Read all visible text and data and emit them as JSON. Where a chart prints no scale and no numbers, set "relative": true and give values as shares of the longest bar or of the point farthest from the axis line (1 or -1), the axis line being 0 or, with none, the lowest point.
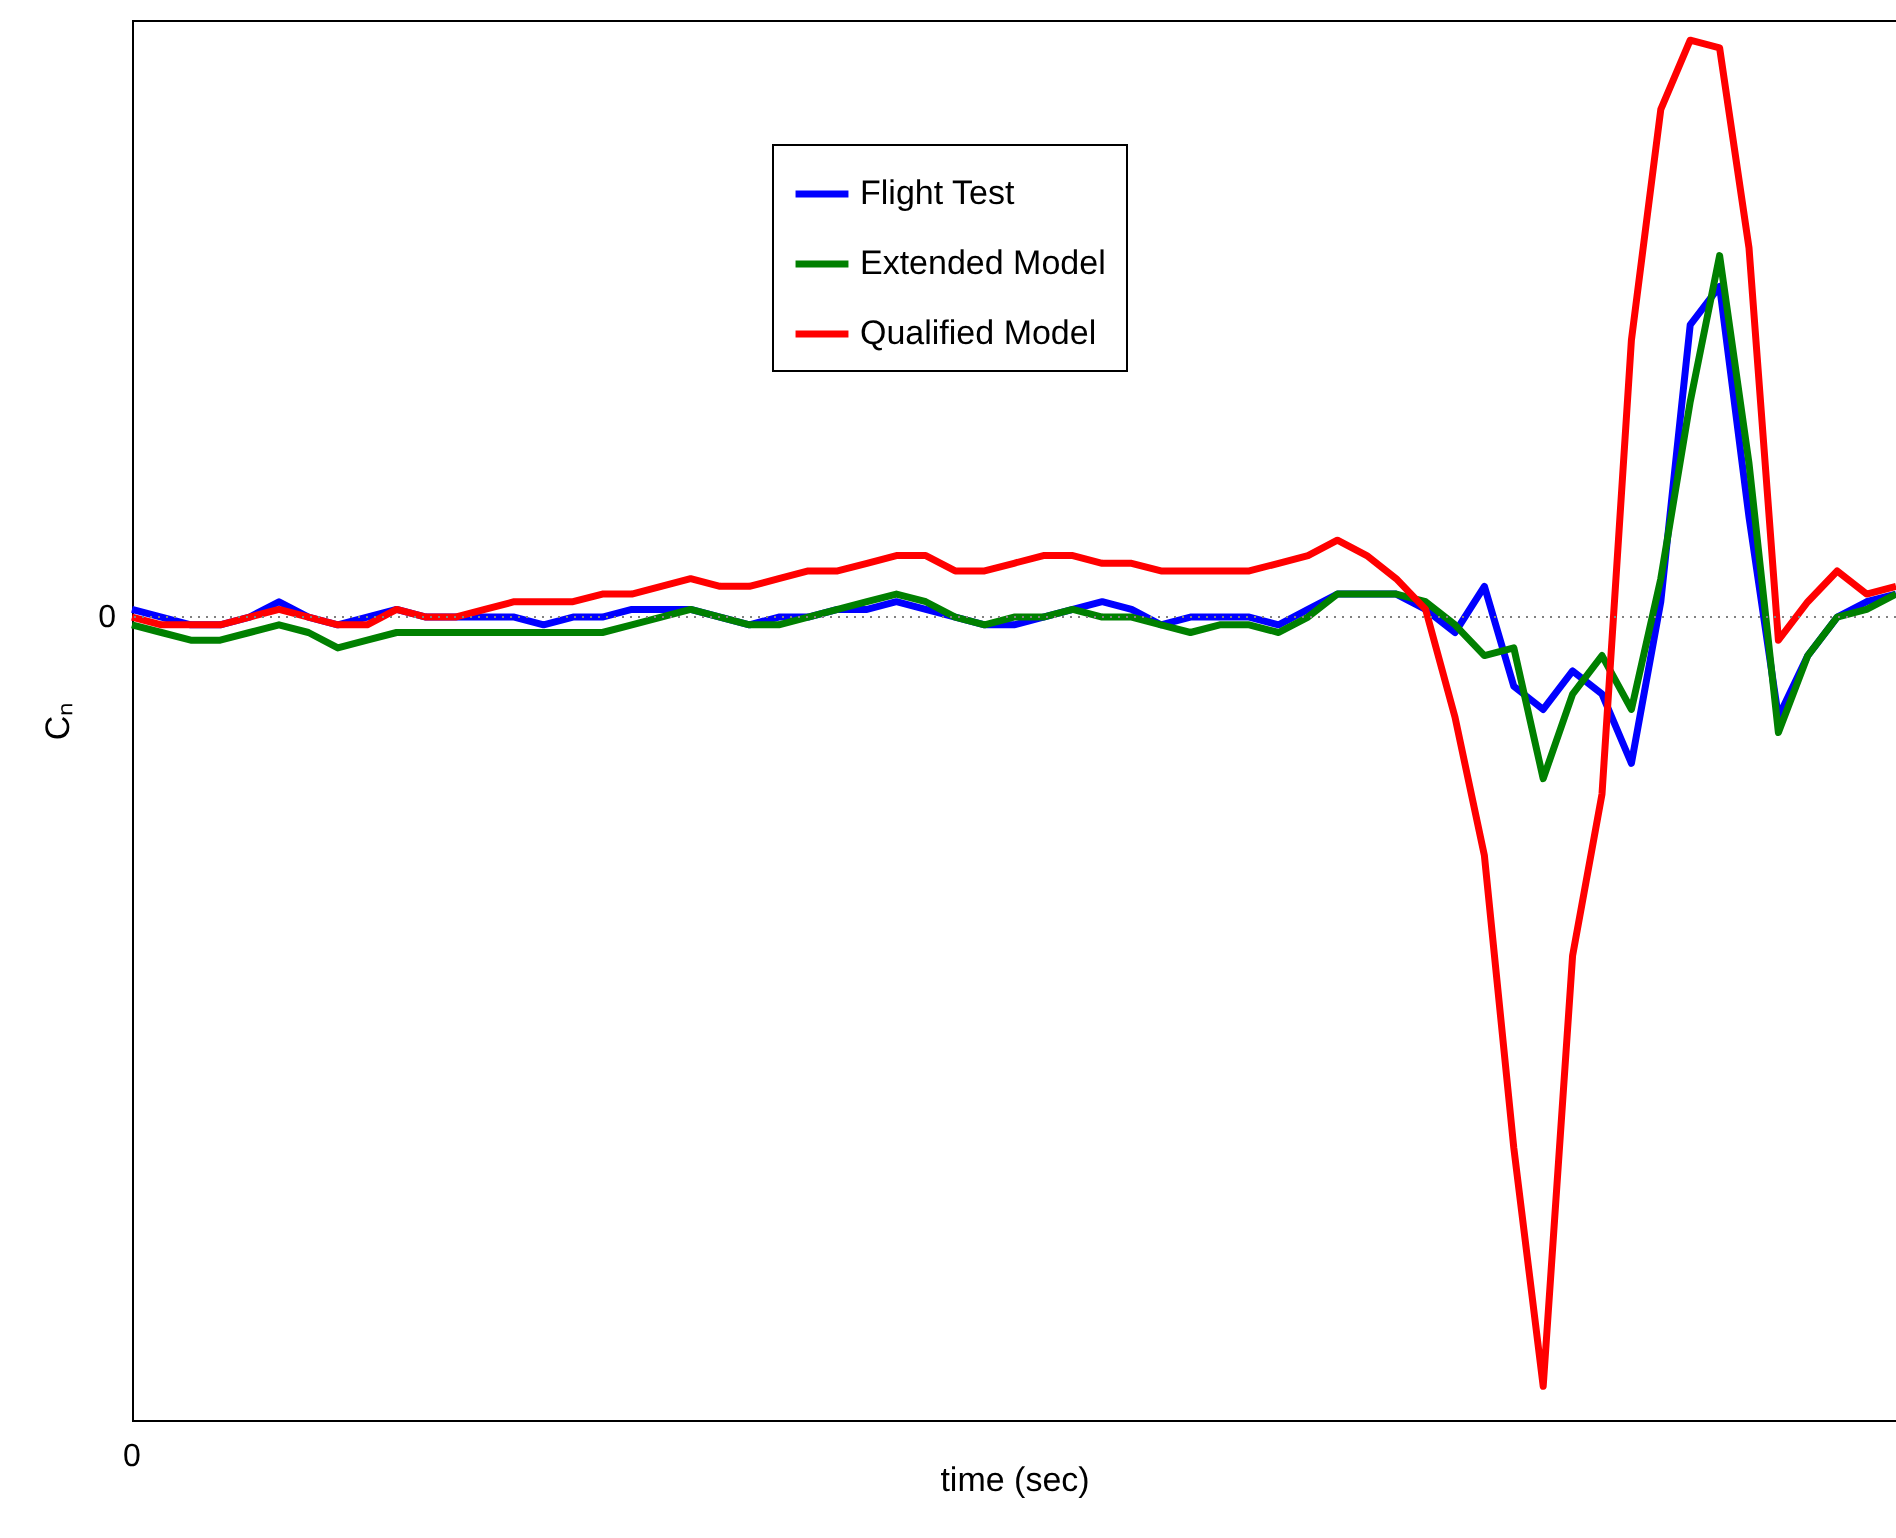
{
  "chart_data": {
    "type": "line",
    "relative": true,
    "xlabel": "time (sec)",
    "ylabel": "Cₙ",
    "legend": "top",
    "grid": false,
    "marker": "none",
    "line_style": "solid",
    "categories": [
      null,
      null,
      null,
      null,
      null,
      null,
      null,
      null,
      null,
      null,
      null,
      null,
      null,
      null,
      null,
      null,
      null,
      null,
      null,
      null,
      null,
      null,
      null,
      null,
      null,
      null,
      null,
      null,
      null,
      null,
      null,
      null,
      null,
      null,
      null,
      null,
      null,
      null,
      null,
      null,
      null,
      null,
      null,
      null,
      null,
      null,
      null,
      null,
      null,
      null,
      null,
      null,
      null,
      null,
      null,
      null,
      null,
      null,
      null,
      null,
      null
    ],
    "series": [
      {
        "name": "Flight Test",
        "color": "#0000ff",
        "values": [
          0.01,
          0,
          -0.01,
          -0.01,
          0,
          0.02,
          0,
          -0.01,
          0,
          0.01,
          0,
          0,
          0,
          0,
          -0.01,
          0,
          0,
          0.01,
          0.01,
          0.01,
          0,
          -0.01,
          0,
          0,
          0.01,
          0.01,
          0.02,
          0.01,
          0,
          -0.01,
          -0.01,
          0,
          0.01,
          0.02,
          0.01,
          -0.01,
          0,
          0,
          0,
          -0.01,
          0.01,
          0.03,
          0.03,
          0.03,
          0.01,
          -0.02,
          0.04,
          -0.09,
          -0.12,
          -0.07,
          -0.1,
          -0.19,
          0.02,
          0.38,
          0.43,
          0.13,
          -0.13,
          -0.05,
          0,
          0.02,
          0.03
        ]
      },
      {
        "name": "Extended Model",
        "color": "#008000",
        "values": [
          -0.01,
          -0.02,
          -0.03,
          -0.03,
          -0.02,
          -0.01,
          -0.02,
          -0.04,
          -0.03,
          -0.02,
          -0.02,
          -0.02,
          -0.02,
          -0.02,
          -0.02,
          -0.02,
          -0.02,
          -0.01,
          0,
          0.01,
          0,
          -0.01,
          -0.01,
          0,
          0.01,
          0.02,
          0.03,
          0.02,
          0,
          -0.01,
          0,
          0,
          0.01,
          0,
          0,
          -0.01,
          -0.02,
          -0.01,
          -0.01,
          -0.02,
          0,
          0.03,
          0.03,
          0.03,
          0.02,
          -0.01,
          -0.05,
          -0.04,
          -0.21,
          -0.1,
          -0.05,
          -0.12,
          0.05,
          0.28,
          0.47,
          0.2,
          -0.15,
          -0.05,
          0,
          0.01,
          0.03
        ]
      },
      {
        "name": "Qualified Model",
        "color": "#ff0000",
        "values": [
          0,
          -0.01,
          -0.01,
          -0.01,
          0,
          0.01,
          0,
          -0.01,
          -0.01,
          0.01,
          0,
          0,
          0.01,
          0.02,
          0.02,
          0.02,
          0.03,
          0.03,
          0.04,
          0.05,
          0.04,
          0.04,
          0.05,
          0.06,
          0.06,
          0.07,
          0.08,
          0.08,
          0.06,
          0.06,
          0.07,
          0.08,
          0.08,
          0.07,
          0.07,
          0.06,
          0.06,
          0.06,
          0.06,
          0.07,
          0.08,
          0.1,
          0.08,
          0.05,
          0.01,
          -0.13,
          -0.31,
          -0.69,
          -1,
          -0.44,
          -0.23,
          0.36,
          0.66,
          0.75,
          0.74,
          0.48,
          -0.03,
          0.02,
          0.06,
          0.03,
          0.04
        ]
      }
    ],
    "ref_lines": [
      {
        "axis": "y",
        "value": 0,
        "label": "0",
        "line_style": "dotted",
        "color": "#808080"
      }
    ],
    "annotations": [
      "0"
    ]
  }
}
